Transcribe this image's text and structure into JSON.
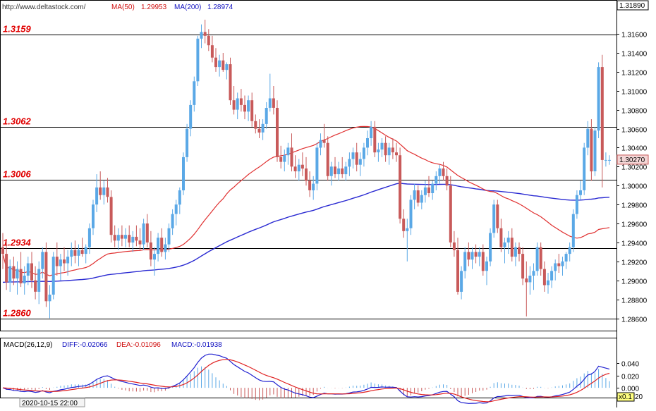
{
  "header": {
    "source": "http://www.deltastock.com/",
    "ma50_label": "MA(50)",
    "ma50_value": "1.29953",
    "ma200_label": "MA(200)",
    "ma200_value": "1.28974"
  },
  "price_panel": {
    "top_price_badge": "1.31890",
    "current_price_badge": "1.30270",
    "ylim": [
      1.2847,
      1.3195
    ],
    "ticks": [
      1.316,
      1.314,
      1.312,
      1.31,
      1.308,
      1.306,
      1.304,
      1.302,
      1.3,
      1.298,
      1.296,
      1.294,
      1.292,
      1.29,
      1.288,
      1.286
    ],
    "tick_labels": [
      "1.31600",
      "1.31400",
      "1.31200",
      "1.31000",
      "1.30800",
      "1.30600",
      "1.30400",
      "1.30200",
      "1.30000",
      "1.29800",
      "1.29600",
      "1.29400",
      "1.29200",
      "1.29000",
      "1.28800",
      "1.28600"
    ],
    "levels": [
      {
        "value": 1.3159,
        "label": "1.3159"
      },
      {
        "value": 1.3062,
        "label": "1.3062"
      },
      {
        "value": 1.3006,
        "label": "1.3006"
      },
      {
        "value": 1.2934,
        "label": "1.2934"
      },
      {
        "value": 1.286,
        "label": "1.2860"
      }
    ]
  },
  "macd_panel": {
    "label": "MACD(26,12,9)",
    "diff_text": "DIFF:-0.02066",
    "dea_text": "DEA:-0.01096",
    "macd_text": "MACD:-0.01938",
    "ylim": [
      -0.016,
      0.06
    ],
    "ticks": [
      0.04,
      0.02,
      0.0
    ],
    "tick_labels": [
      "0.040",
      "0.020",
      "0.000"
    ],
    "scale_badge": "x0.1",
    "scale_tail": "20"
  },
  "footer": {
    "date": "2020-10-15 22:00"
  },
  "colors": {
    "up": "#5aa8e6",
    "down": "#c85a5a",
    "ma50": "#e03030",
    "ma200": "#2a2ad2",
    "diff": "#2020d0",
    "dea": "#e02020",
    "level_label": "#e00000",
    "header_red": "#d01010",
    "header_blue": "#1010c0"
  },
  "chart_data": {
    "type": "candlestick",
    "timeframe_bars": 179,
    "series": [
      {
        "name": "MA(50)"
      },
      {
        "name": "MA(200)"
      }
    ],
    "ohlc": [
      [
        1.2935,
        1.295,
        1.2912,
        1.2928
      ],
      [
        1.2928,
        1.2942,
        1.289,
        1.2898
      ],
      [
        1.2898,
        1.2922,
        1.2888,
        1.2915
      ],
      [
        1.2915,
        1.2925,
        1.2895,
        1.2902
      ],
      [
        1.2902,
        1.292,
        1.2885,
        1.2912
      ],
      [
        1.2912,
        1.293,
        1.2893,
        1.2897
      ],
      [
        1.2897,
        1.2915,
        1.2885,
        1.2905
      ],
      [
        1.2905,
        1.2925,
        1.2895,
        1.2918
      ],
      [
        1.2918,
        1.293,
        1.2892,
        1.29
      ],
      [
        1.29,
        1.2915,
        1.288,
        1.2888
      ],
      [
        1.2888,
        1.292,
        1.2875,
        1.2912
      ],
      [
        1.2912,
        1.2935,
        1.2902,
        1.293
      ],
      [
        1.293,
        1.294,
        1.2872,
        1.2878
      ],
      [
        1.2878,
        1.2895,
        1.286,
        1.2885
      ],
      [
        1.2885,
        1.293,
        1.288,
        1.2925
      ],
      [
        1.2925,
        1.294,
        1.2905,
        1.2915
      ],
      [
        1.2915,
        1.2928,
        1.29,
        1.2922
      ],
      [
        1.2922,
        1.2935,
        1.291,
        1.2918
      ],
      [
        1.2918,
        1.2932,
        1.2905,
        1.2925
      ],
      [
        1.2925,
        1.294,
        1.2915,
        1.2932
      ],
      [
        1.2932,
        1.2942,
        1.2918,
        1.2926
      ],
      [
        1.2926,
        1.2938,
        1.2915,
        1.2932
      ],
      [
        1.2932,
        1.2945,
        1.2925,
        1.2928
      ],
      [
        1.2928,
        1.2938,
        1.2918,
        1.2935
      ],
      [
        1.2935,
        1.296,
        1.2928,
        1.2955
      ],
      [
        1.2955,
        1.2985,
        1.2948,
        1.298
      ],
      [
        1.298,
        1.3012,
        1.2972,
        1.2998
      ],
      [
        1.2998,
        1.3015,
        1.2985,
        1.299
      ],
      [
        1.299,
        1.3005,
        1.298,
        1.2998
      ],
      [
        1.2998,
        1.3008,
        1.2982,
        1.2988
      ],
      [
        1.2988,
        1.2995,
        1.294,
        1.2948
      ],
      [
        1.2948,
        1.2958,
        1.2935,
        1.2942
      ],
      [
        1.2942,
        1.2955,
        1.2932,
        1.2948
      ],
      [
        1.2948,
        1.2958,
        1.2936,
        1.2944
      ],
      [
        1.2944,
        1.2955,
        1.2935,
        1.2948
      ],
      [
        1.2948,
        1.2958,
        1.2935,
        1.294
      ],
      [
        1.294,
        1.2952,
        1.293,
        1.2946
      ],
      [
        1.2946,
        1.2958,
        1.2936,
        1.2942
      ],
      [
        1.2942,
        1.2955,
        1.2932,
        1.2938
      ],
      [
        1.2938,
        1.2965,
        1.2932,
        1.296
      ],
      [
        1.296,
        1.297,
        1.2935,
        1.294
      ],
      [
        1.294,
        1.2952,
        1.2915,
        1.2922
      ],
      [
        1.2922,
        1.2935,
        1.2905,
        1.2928
      ],
      [
        1.2928,
        1.295,
        1.292,
        1.2945
      ],
      [
        1.2945,
        1.2955,
        1.2925,
        1.293
      ],
      [
        1.293,
        1.2945,
        1.2922,
        1.2938
      ],
      [
        1.2938,
        1.296,
        1.293,
        1.2955
      ],
      [
        1.2955,
        1.2975,
        1.2948,
        1.297
      ],
      [
        1.297,
        1.2985,
        1.2958,
        1.298
      ],
      [
        1.298,
        1.2998,
        1.297,
        1.2995
      ],
      [
        1.2995,
        1.3035,
        1.299,
        1.303
      ],
      [
        1.303,
        1.3065,
        1.3025,
        1.306
      ],
      [
        1.306,
        1.309,
        1.3052,
        1.3085
      ],
      [
        1.3085,
        1.3115,
        1.3078,
        1.311
      ],
      [
        1.311,
        1.3158,
        1.3105,
        1.3155
      ],
      [
        1.3155,
        1.317,
        1.3145,
        1.3162
      ],
      [
        1.3162,
        1.3175,
        1.315,
        1.3158
      ],
      [
        1.3158,
        1.3165,
        1.3142,
        1.3148
      ],
      [
        1.3148,
        1.3158,
        1.313,
        1.3135
      ],
      [
        1.3135,
        1.3145,
        1.312,
        1.3125
      ],
      [
        1.3125,
        1.3138,
        1.3115,
        1.3132
      ],
      [
        1.3132,
        1.314,
        1.312,
        1.3122
      ],
      [
        1.3122,
        1.313,
        1.3112,
        1.3128
      ],
      [
        1.3128,
        1.3135,
        1.3085,
        1.309
      ],
      [
        1.309,
        1.3105,
        1.3075,
        1.308
      ],
      [
        1.308,
        1.3098,
        1.307,
        1.3092
      ],
      [
        1.3092,
        1.3102,
        1.3078,
        1.3085
      ],
      [
        1.3085,
        1.3095,
        1.307,
        1.3078
      ],
      [
        1.3078,
        1.3095,
        1.3068,
        1.309
      ],
      [
        1.309,
        1.3098,
        1.3062,
        1.3068
      ],
      [
        1.3068,
        1.3075,
        1.3055,
        1.306
      ],
      [
        1.306,
        1.307,
        1.305,
        1.3056
      ],
      [
        1.3056,
        1.307,
        1.3048,
        1.3065
      ],
      [
        1.3065,
        1.3088,
        1.306,
        1.3082
      ],
      [
        1.3082,
        1.3118,
        1.3078,
        1.3092
      ],
      [
        1.3092,
        1.3105,
        1.3075,
        1.3082
      ],
      [
        1.3082,
        1.309,
        1.3025,
        1.303
      ],
      [
        1.303,
        1.3042,
        1.3018,
        1.3025
      ],
      [
        1.3025,
        1.3038,
        1.3015,
        1.3032
      ],
      [
        1.3032,
        1.3045,
        1.3022,
        1.304
      ],
      [
        1.304,
        1.3055,
        1.3015,
        1.302
      ],
      [
        1.302,
        1.3032,
        1.3008,
        1.3015
      ],
      [
        1.3015,
        1.3028,
        1.3005,
        1.3022
      ],
      [
        1.3022,
        1.3035,
        1.301,
        1.3018
      ],
      [
        1.3018,
        1.303,
        1.3,
        1.3005
      ],
      [
        1.3005,
        1.3015,
        1.2988,
        1.2995
      ],
      [
        1.2995,
        1.301,
        1.2985,
        1.3002
      ],
      [
        1.3002,
        1.3045,
        1.2995,
        1.304
      ],
      [
        1.304,
        1.3055,
        1.3032,
        1.3048
      ],
      [
        1.3048,
        1.3065,
        1.304,
        1.3045
      ],
      [
        1.3045,
        1.3052,
        1.3005,
        1.301
      ],
      [
        1.301,
        1.3025,
        1.3,
        1.302
      ],
      [
        1.302,
        1.303,
        1.3008,
        1.3012
      ],
      [
        1.3012,
        1.3025,
        1.3005,
        1.3018
      ],
      [
        1.3018,
        1.303,
        1.3008,
        1.3012
      ],
      [
        1.3012,
        1.3025,
        1.3005,
        1.302
      ],
      [
        1.302,
        1.3035,
        1.301,
        1.3028
      ],
      [
        1.3028,
        1.304,
        1.3018,
        1.3035
      ],
      [
        1.3035,
        1.3045,
        1.3015,
        1.3022
      ],
      [
        1.3022,
        1.3035,
        1.301,
        1.3028
      ],
      [
        1.3028,
        1.3045,
        1.302,
        1.304
      ],
      [
        1.304,
        1.3058,
        1.3032,
        1.305
      ],
      [
        1.305,
        1.3068,
        1.3042,
        1.3062
      ],
      [
        1.3062,
        1.3068,
        1.303,
        1.3035
      ],
      [
        1.3035,
        1.3045,
        1.3025,
        1.3038
      ],
      [
        1.3038,
        1.305,
        1.303,
        1.3045
      ],
      [
        1.3045,
        1.3052,
        1.3025,
        1.3032
      ],
      [
        1.3032,
        1.3045,
        1.3022,
        1.304
      ],
      [
        1.304,
        1.305,
        1.3028,
        1.3035
      ],
      [
        1.3035,
        1.3045,
        1.3025,
        1.3032
      ],
      [
        1.3032,
        1.304,
        1.296,
        1.2965
      ],
      [
        1.2965,
        1.2975,
        1.2945,
        1.2952
      ],
      [
        1.2952,
        1.2965,
        1.292,
        1.2955
      ],
      [
        1.2955,
        1.299,
        1.2948,
        1.2985
      ],
      [
        1.2985,
        1.3002,
        1.2975,
        1.2995
      ],
      [
        1.2995,
        1.3,
        1.2978,
        1.2982
      ],
      [
        1.2982,
        1.2995,
        1.2975,
        1.299
      ],
      [
        1.299,
        1.3005,
        1.2982,
        1.2998
      ],
      [
        1.2998,
        1.301,
        1.2988,
        1.2992
      ],
      [
        1.2992,
        1.3005,
        1.2985,
        1.3002
      ],
      [
        1.3002,
        1.3015,
        1.2995,
        1.301
      ],
      [
        1.301,
        1.3022,
        1.3002,
        1.3018
      ],
      [
        1.3018,
        1.3025,
        1.3005,
        1.301
      ],
      [
        1.301,
        1.3018,
        1.2995,
        1.3
      ],
      [
        1.3,
        1.301,
        1.2935,
        1.294
      ],
      [
        1.294,
        1.2952,
        1.2925,
        1.2932
      ],
      [
        1.2932,
        1.2945,
        1.2885,
        1.2888
      ],
      [
        1.2888,
        1.2915,
        1.288,
        1.291
      ],
      [
        1.291,
        1.2935,
        1.2902,
        1.293
      ],
      [
        1.293,
        1.294,
        1.2915,
        1.2922
      ],
      [
        1.2922,
        1.2935,
        1.2912,
        1.293
      ],
      [
        1.293,
        1.2938,
        1.2918,
        1.2925
      ],
      [
        1.2925,
        1.2935,
        1.2915,
        1.293
      ],
      [
        1.293,
        1.2938,
        1.2905,
        1.291
      ],
      [
        1.291,
        1.2925,
        1.2895,
        1.292
      ],
      [
        1.292,
        1.2955,
        1.2915,
        1.295
      ],
      [
        1.295,
        1.2985,
        1.2945,
        1.298
      ],
      [
        1.298,
        1.2985,
        1.295,
        1.2955
      ],
      [
        1.2955,
        1.2965,
        1.293,
        1.2935
      ],
      [
        1.2935,
        1.2945,
        1.2918,
        1.294
      ],
      [
        1.294,
        1.2952,
        1.2928,
        1.2945
      ],
      [
        1.2945,
        1.2955,
        1.292,
        1.2925
      ],
      [
        1.2925,
        1.294,
        1.2915,
        1.2935
      ],
      [
        1.2935,
        1.294,
        1.292,
        1.2928
      ],
      [
        1.2928,
        1.2935,
        1.2895,
        1.2902
      ],
      [
        1.2902,
        1.292,
        1.2862,
        1.2898
      ],
      [
        1.2898,
        1.2915,
        1.2885,
        1.2905
      ],
      [
        1.2905,
        1.2918,
        1.289,
        1.291
      ],
      [
        1.291,
        1.294,
        1.2905,
        1.2935
      ],
      [
        1.2935,
        1.294,
        1.2905,
        1.2912
      ],
      [
        1.2912,
        1.292,
        1.2888,
        1.2895
      ],
      [
        1.2895,
        1.2908,
        1.2886,
        1.29
      ],
      [
        1.29,
        1.2915,
        1.2892,
        1.291
      ],
      [
        1.291,
        1.2922,
        1.29,
        1.2918
      ],
      [
        1.2918,
        1.2928,
        1.2908,
        1.2915
      ],
      [
        1.2915,
        1.2925,
        1.2905,
        1.292
      ],
      [
        1.292,
        1.293,
        1.2912,
        1.2928
      ],
      [
        1.2928,
        1.294,
        1.292,
        1.2935
      ],
      [
        1.2935,
        1.2975,
        1.293,
        1.297
      ],
      [
        1.297,
        1.2995,
        1.2965,
        1.299
      ],
      [
        1.299,
        1.3005,
        1.2985,
        1.2995
      ],
      [
        1.2995,
        1.3045,
        1.299,
        1.304
      ],
      [
        1.304,
        1.3068,
        1.3032,
        1.306
      ],
      [
        1.306,
        1.307,
        1.3005,
        1.3015
      ],
      [
        1.3015,
        1.3062,
        1.301,
        1.3058
      ],
      [
        1.3058,
        1.313,
        1.305,
        1.3125
      ],
      [
        1.3125,
        1.3138,
        1.2998,
        1.3027
      ],
      [
        1.3027,
        1.3035,
        1.302,
        1.3027
      ],
      [
        1.3027,
        1.3032,
        1.3022,
        1.3027
      ]
    ]
  }
}
